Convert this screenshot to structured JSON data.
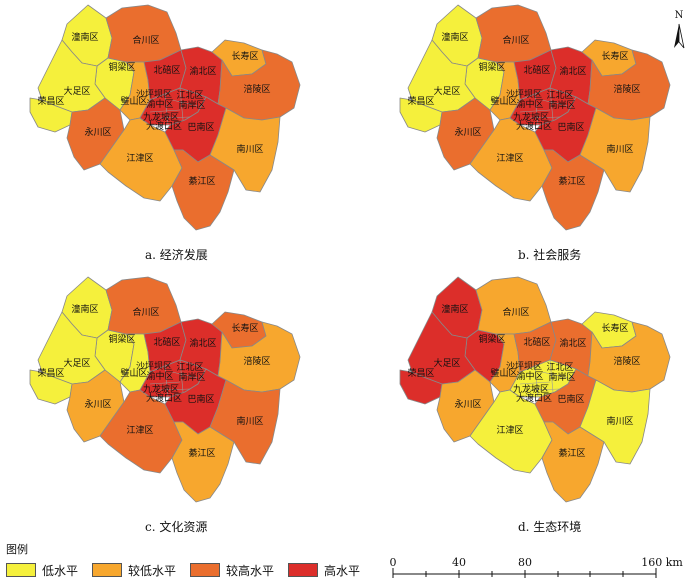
{
  "colors": {
    "low": "#f5f03c",
    "low_mid": "#f7a72e",
    "mid_high": "#ea6e2e",
    "high": "#dc2e2a",
    "boundary": "#888888",
    "inner_boundary": "#999999"
  },
  "legend": {
    "title": "图例",
    "items": [
      {
        "key": "low",
        "label": "低水平"
      },
      {
        "key": "low_mid",
        "label": "较低水平"
      },
      {
        "key": "mid_high",
        "label": "较高水平"
      },
      {
        "key": "high",
        "label": "高水平"
      }
    ]
  },
  "scale_bar": {
    "ticks": [
      "0",
      "40",
      "80",
      "160 km"
    ]
  },
  "north_arrow": {
    "label": "N"
  },
  "district_names": {
    "tongnan": "潼南区",
    "hechuan": "合川区",
    "tongliang": "铜梁区",
    "dazu": "大足区",
    "rongchang": "荣昌区",
    "yongchuan": "永川区",
    "bishan": "璧山区",
    "beibei": "北碚区",
    "yubei": "渝北区",
    "changshou": "长寿区",
    "fuling": "涪陵区",
    "jiangjin": "江津区",
    "qijiang": "綦江区",
    "nanchuan": "南川区",
    "banan": "巴南区",
    "shapingba": "沙坪坝区",
    "yuzhong": "渝中区",
    "jiangbei": "江北区",
    "nanan": "南岸区",
    "jiulongpo": "九龙坡区",
    "dadukou": "大渡口区"
  },
  "panels": [
    {
      "caption": "a.  经济发展",
      "levels": {
        "tongnan": "low",
        "hechuan": "mid_high",
        "tongliang": "low",
        "dazu": "low",
        "rongchang": "low",
        "yongchuan": "mid_high",
        "bishan": "low_mid",
        "beibei": "high",
        "yubei": "high",
        "changshou": "low_mid",
        "fuling": "mid_high",
        "jiangjin": "low_mid",
        "qijiang": "mid_high",
        "nanchuan": "low_mid",
        "banan": "high",
        "core": "high"
      }
    },
    {
      "caption": "b.  社会服务",
      "levels": {
        "tongnan": "low",
        "hechuan": "mid_high",
        "tongliang": "low",
        "dazu": "low",
        "rongchang": "low",
        "yongchuan": "mid_high",
        "bishan": "low_mid",
        "beibei": "high",
        "yubei": "high",
        "changshou": "low_mid",
        "fuling": "mid_high",
        "jiangjin": "low_mid",
        "qijiang": "mid_high",
        "nanchuan": "low_mid",
        "banan": "high",
        "core": "high"
      }
    },
    {
      "caption": "c.  文化资源",
      "levels": {
        "tongnan": "low",
        "hechuan": "mid_high",
        "tongliang": "low",
        "dazu": "low",
        "rongchang": "low",
        "yongchuan": "low_mid",
        "bishan": "low",
        "beibei": "high",
        "yubei": "high",
        "changshou": "mid_high",
        "fuling": "low_mid",
        "jiangjin": "mid_high",
        "qijiang": "low_mid",
        "nanchuan": "mid_high",
        "banan": "high",
        "core": "high"
      }
    },
    {
      "caption": "d.  生态环境",
      "levels": {
        "tongnan": "high",
        "hechuan": "low_mid",
        "tongliang": "high",
        "dazu": "high",
        "rongchang": "high",
        "yongchuan": "low_mid",
        "bishan": "low_mid",
        "beibei": "mid_high",
        "yubei": "mid_high",
        "changshou": "low",
        "fuling": "low_mid",
        "jiangjin": "low",
        "qijiang": "low_mid",
        "nanchuan": "low",
        "banan": "mid_high",
        "core": "low"
      }
    }
  ]
}
